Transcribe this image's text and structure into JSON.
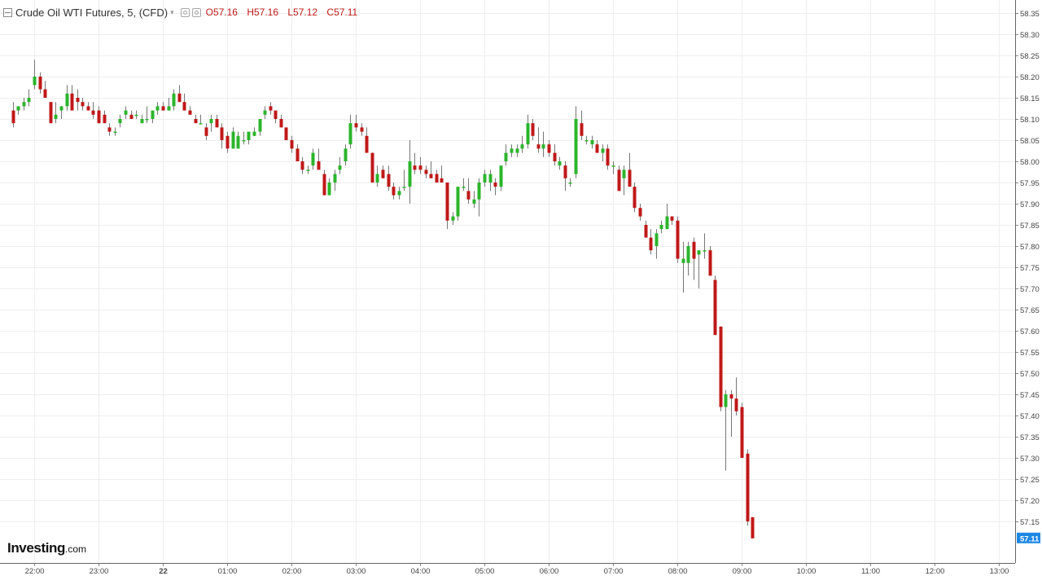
{
  "header": {
    "title": "Crude Oil WTI Futures, 5, (CFD)",
    "open": "O57.16",
    "high": "H57.16",
    "low": "L57.12",
    "close": "C57.11"
  },
  "logo": {
    "name": "Investing",
    "domain": ".com"
  },
  "colors": {
    "up": "#2bb52b",
    "down": "#c01818",
    "grid": "#eeeeee",
    "axis_text": "#444444"
  },
  "icons": [
    "collapse-icon",
    "dropdown-icon",
    "settings-icon",
    "eye-icon"
  ],
  "chart_data": {
    "type": "candlestick",
    "symbol": "Crude Oil WTI Futures",
    "interval": "5",
    "x_ticks": [
      "22:00",
      "23:00",
      "22",
      "01:00",
      "02:00",
      "03:00",
      "04:00",
      "05:00",
      "06:00",
      "07:00",
      "08:00",
      "09:00",
      "10:00",
      "11:00",
      "12:00",
      "13:00"
    ],
    "y_ticks": [
      "58.35",
      "58.30",
      "58.25",
      "58.20",
      "58.15",
      "58.10",
      "58.05",
      "58.00",
      "57.95",
      "57.90",
      "57.85",
      "57.80",
      "57.75",
      "57.70",
      "57.65",
      "57.60",
      "57.55",
      "57.50",
      "57.45",
      "57.40",
      "57.35",
      "57.30",
      "57.25",
      "57.20",
      "57.15"
    ],
    "ylim": [
      57.07,
      58.37
    ],
    "last_price": "57.11",
    "grid": true,
    "first_candle_time": "21:40",
    "candles": [
      [
        58.12,
        58.14,
        58.08,
        58.09
      ],
      [
        58.12,
        58.13,
        58.11,
        58.13
      ],
      [
        58.13,
        58.15,
        58.12,
        58.14
      ],
      [
        58.14,
        58.17,
        58.13,
        58.15
      ],
      [
        58.18,
        58.24,
        58.17,
        58.2
      ],
      [
        58.2,
        58.21,
        58.16,
        58.17
      ],
      [
        58.17,
        58.19,
        58.15,
        58.15
      ],
      [
        58.14,
        58.14,
        58.09,
        58.09
      ],
      [
        58.1,
        58.14,
        58.09,
        58.11
      ],
      [
        58.12,
        58.13,
        58.1,
        58.13
      ],
      [
        58.13,
        58.18,
        58.12,
        58.16
      ],
      [
        58.16,
        58.18,
        58.12,
        58.12
      ],
      [
        58.15,
        58.17,
        58.12,
        58.14
      ],
      [
        58.14,
        58.15,
        58.12,
        58.13
      ],
      [
        58.13,
        58.14,
        58.12,
        58.12
      ],
      [
        58.12,
        58.14,
        58.1,
        58.11
      ],
      [
        58.12,
        58.13,
        58.09,
        58.09
      ],
      [
        58.11,
        58.12,
        58.09,
        58.09
      ],
      [
        58.08,
        58.09,
        58.06,
        58.07
      ],
      [
        58.07,
        58.08,
        58.06,
        58.07
      ],
      [
        58.09,
        58.11,
        58.08,
        58.1
      ],
      [
        58.11,
        58.13,
        58.1,
        58.12
      ],
      [
        58.11,
        58.12,
        58.1,
        58.1
      ],
      [
        58.11,
        58.12,
        58.1,
        58.11
      ],
      [
        58.09,
        58.11,
        58.09,
        58.1
      ],
      [
        58.1,
        58.13,
        58.09,
        58.1
      ],
      [
        58.1,
        58.12,
        58.09,
        58.12
      ],
      [
        58.12,
        58.14,
        58.11,
        58.13
      ],
      [
        58.13,
        58.14,
        58.12,
        58.12
      ],
      [
        58.12,
        58.15,
        58.12,
        58.13
      ],
      [
        58.13,
        58.17,
        58.12,
        58.16
      ],
      [
        58.16,
        58.18,
        58.14,
        58.14
      ],
      [
        58.14,
        58.16,
        58.12,
        58.12
      ],
      [
        58.12,
        58.13,
        58.11,
        58.11
      ],
      [
        58.1,
        58.11,
        58.09,
        58.09
      ],
      [
        58.09,
        58.11,
        58.09,
        58.09
      ],
      [
        58.08,
        58.09,
        58.05,
        58.06
      ],
      [
        58.09,
        58.11,
        58.07,
        58.1
      ],
      [
        58.1,
        58.11,
        58.08,
        58.08
      ],
      [
        58.08,
        58.09,
        58.03,
        58.05
      ],
      [
        58.06,
        58.07,
        58.02,
        58.03
      ],
      [
        58.03,
        58.08,
        58.03,
        58.07
      ],
      [
        58.03,
        58.07,
        58.03,
        58.06
      ],
      [
        58.05,
        58.07,
        58.04,
        58.05
      ],
      [
        58.05,
        58.07,
        58.04,
        58.07
      ],
      [
        58.06,
        58.08,
        58.06,
        58.07
      ],
      [
        58.07,
        58.1,
        58.06,
        58.1
      ],
      [
        58.11,
        58.13,
        58.1,
        58.12
      ],
      [
        58.13,
        58.14,
        58.11,
        58.12
      ],
      [
        58.12,
        58.12,
        58.09,
        58.1
      ],
      [
        58.1,
        58.11,
        58.08,
        58.08
      ],
      [
        58.08,
        58.08,
        58.05,
        58.05
      ],
      [
        58.05,
        58.06,
        58.02,
        58.03
      ],
      [
        58.03,
        58.04,
        58.0,
        58.0
      ],
      [
        58.0,
        58.01,
        57.97,
        57.98
      ],
      [
        57.98,
        57.99,
        57.97,
        57.98
      ],
      [
        57.99,
        58.03,
        57.98,
        58.02
      ],
      [
        58.0,
        58.03,
        57.99,
        57.98
      ],
      [
        57.97,
        57.98,
        57.92,
        57.92
      ],
      [
        57.92,
        57.96,
        57.92,
        57.95
      ],
      [
        57.95,
        57.98,
        57.93,
        57.97
      ],
      [
        57.98,
        58.01,
        57.97,
        57.99
      ],
      [
        58.0,
        58.04,
        57.99,
        58.03
      ],
      [
        58.04,
        58.11,
        58.03,
        58.09
      ],
      [
        58.09,
        58.11,
        58.07,
        58.08
      ],
      [
        58.08,
        58.09,
        58.06,
        58.07
      ],
      [
        58.06,
        58.08,
        58.02,
        58.02
      ],
      [
        58.02,
        58.02,
        57.95,
        57.95
      ],
      [
        57.95,
        57.99,
        57.94,
        57.97
      ],
      [
        57.98,
        57.99,
        57.96,
        57.96
      ],
      [
        57.97,
        57.99,
        57.93,
        57.94
      ],
      [
        57.94,
        57.95,
        57.91,
        57.92
      ],
      [
        57.92,
        57.94,
        57.91,
        57.93
      ],
      [
        57.94,
        57.98,
        57.93,
        57.94
      ],
      [
        57.94,
        58.05,
        57.9,
        58.0
      ],
      [
        57.99,
        58.02,
        57.97,
        57.98
      ],
      [
        57.99,
        58.01,
        57.97,
        57.98
      ],
      [
        57.98,
        57.99,
        57.96,
        57.97
      ],
      [
        57.97,
        58.0,
        57.96,
        57.96
      ],
      [
        57.97,
        57.98,
        57.95,
        57.95
      ],
      [
        57.96,
        57.99,
        57.95,
        57.95
      ],
      [
        57.95,
        57.95,
        57.84,
        57.86
      ],
      [
        57.86,
        57.88,
        57.85,
        57.87
      ],
      [
        57.87,
        57.94,
        57.86,
        57.94
      ],
      [
        57.94,
        57.96,
        57.93,
        57.94
      ],
      [
        57.93,
        57.96,
        57.9,
        57.91
      ],
      [
        57.9,
        57.93,
        57.89,
        57.91
      ],
      [
        57.91,
        57.96,
        57.87,
        57.95
      ],
      [
        57.95,
        57.98,
        57.94,
        57.97
      ],
      [
        57.95,
        57.98,
        57.93,
        57.97
      ],
      [
        57.95,
        57.96,
        57.92,
        57.94
      ],
      [
        57.94,
        57.99,
        57.93,
        57.99
      ],
      [
        58.0,
        58.04,
        57.99,
        58.02
      ],
      [
        58.02,
        58.04,
        58.01,
        58.03
      ],
      [
        58.02,
        58.04,
        58.01,
        58.03
      ],
      [
        58.03,
        58.06,
        58.02,
        58.04
      ],
      [
        58.04,
        58.11,
        58.03,
        58.09
      ],
      [
        58.09,
        58.1,
        58.05,
        58.06
      ],
      [
        58.04,
        58.08,
        58.02,
        58.03
      ],
      [
        58.03,
        58.07,
        58.01,
        58.04
      ],
      [
        58.04,
        58.05,
        58.01,
        58.02
      ],
      [
        58.02,
        58.04,
        57.99,
        58.0
      ],
      [
        57.99,
        58.01,
        57.98,
        58.0
      ],
      [
        57.99,
        58.0,
        57.93,
        57.96
      ],
      [
        57.95,
        57.96,
        57.94,
        57.95
      ],
      [
        57.97,
        58.13,
        57.96,
        58.1
      ],
      [
        58.09,
        58.12,
        58.05,
        58.06
      ],
      [
        58.05,
        58.06,
        58.04,
        58.05
      ],
      [
        58.04,
        58.06,
        58.03,
        58.05
      ],
      [
        58.04,
        58.05,
        58.02,
        58.02
      ],
      [
        58.02,
        58.04,
        58.0,
        58.03
      ],
      [
        58.03,
        58.04,
        57.98,
        57.99
      ],
      [
        57.99,
        58.0,
        57.97,
        57.99
      ],
      [
        57.98,
        57.99,
        57.93,
        57.93
      ],
      [
        57.96,
        57.99,
        57.92,
        57.98
      ],
      [
        57.98,
        58.02,
        57.94,
        57.94
      ],
      [
        57.94,
        57.95,
        57.88,
        57.89
      ],
      [
        57.89,
        57.9,
        57.86,
        57.87
      ],
      [
        57.85,
        57.86,
        57.82,
        57.82
      ],
      [
        57.82,
        57.84,
        57.78,
        57.79
      ],
      [
        57.8,
        57.84,
        57.77,
        57.83
      ],
      [
        57.84,
        57.86,
        57.83,
        57.85
      ],
      [
        57.84,
        57.9,
        57.84,
        57.87
      ],
      [
        57.87,
        57.87,
        57.85,
        57.86
      ],
      [
        57.86,
        57.87,
        57.76,
        57.77
      ],
      [
        57.76,
        57.81,
        57.69,
        57.77
      ],
      [
        57.76,
        57.81,
        57.73,
        57.8
      ],
      [
        57.81,
        57.82,
        57.72,
        57.77
      ],
      [
        57.78,
        57.79,
        57.7,
        57.79
      ],
      [
        57.79,
        57.83,
        57.77,
        57.79
      ],
      [
        57.79,
        57.8,
        57.73,
        57.73
      ],
      [
        57.72,
        57.73,
        57.59,
        57.59
      ],
      [
        57.61,
        57.61,
        57.41,
        57.42
      ],
      [
        57.42,
        57.46,
        57.27,
        57.45
      ],
      [
        57.45,
        57.46,
        57.35,
        57.44
      ],
      [
        57.44,
        57.49,
        57.4,
        57.41
      ],
      [
        57.42,
        57.43,
        57.3,
        57.3
      ],
      [
        57.31,
        57.32,
        57.14,
        57.15
      ],
      [
        57.16,
        57.16,
        57.12,
        57.11
      ]
    ]
  }
}
